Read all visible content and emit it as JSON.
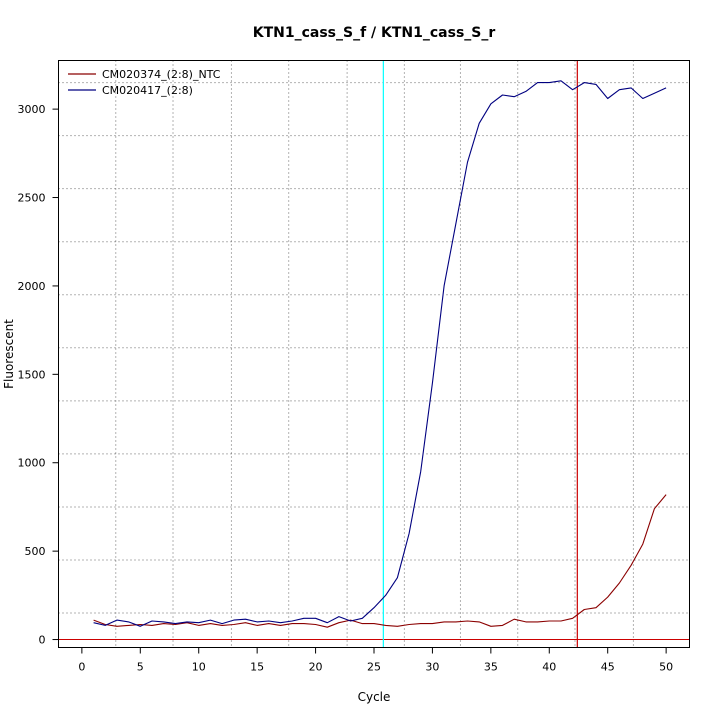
{
  "chart_data": {
    "type": "line",
    "title": "KTN1_cass_S_f / KTN1_cass_S_r",
    "xlabel": "Cycle",
    "ylabel": "Fluorescent",
    "xlim": [
      -2,
      52
    ],
    "ylim": [
      -45,
      3275
    ],
    "x_ticks": [
      0,
      5,
      10,
      15,
      20,
      25,
      30,
      35,
      40,
      45,
      50
    ],
    "y_ticks": [
      0,
      500,
      1000,
      1500,
      2000,
      2500,
      3000
    ],
    "grid": true,
    "grid_style": "dotted",
    "vertical_gridlines": [
      2.9,
      7.8,
      12.8,
      17.7,
      22.7,
      27.6,
      32.4,
      37.3,
      42.2,
      47.2
    ],
    "horizontal_gridlines": [
      150,
      450,
      750,
      1050,
      1350,
      1650,
      1950,
      2250,
      2550,
      2850,
      3150
    ],
    "legend_position": "top-left",
    "threshold_line": {
      "y": 0,
      "color": "#cc0000"
    },
    "markers": [
      {
        "x": 25.8,
        "color": "#00ffff"
      },
      {
        "x": 42.4,
        "color": "#cc0000"
      }
    ],
    "x": [
      1,
      2,
      3,
      4,
      5,
      6,
      7,
      8,
      9,
      10,
      11,
      12,
      13,
      14,
      15,
      16,
      17,
      18,
      19,
      20,
      21,
      22,
      23,
      24,
      25,
      26,
      27,
      28,
      29,
      30,
      31,
      32,
      33,
      34,
      35,
      36,
      37,
      38,
      39,
      40,
      41,
      42,
      43,
      44,
      45,
      46,
      47,
      48,
      49,
      50
    ],
    "series": [
      {
        "name": "CM020374_(2:8)_NTC",
        "color": "#8b0000",
        "values": [
          110,
          85,
          75,
          80,
          85,
          80,
          90,
          85,
          95,
          80,
          90,
          80,
          85,
          95,
          80,
          90,
          80,
          90,
          90,
          85,
          70,
          95,
          110,
          90,
          90,
          80,
          75,
          85,
          90,
          90,
          100,
          100,
          105,
          100,
          75,
          80,
          115,
          100,
          100,
          105,
          105,
          120,
          170,
          180,
          240,
          320,
          420,
          540,
          740,
          820
        ]
      },
      {
        "name": "CM020417_(2:8)",
        "color": "#000080",
        "values": [
          95,
          80,
          110,
          100,
          75,
          105,
          100,
          90,
          100,
          95,
          110,
          90,
          110,
          115,
          100,
          105,
          95,
          105,
          120,
          120,
          95,
          130,
          105,
          120,
          180,
          250,
          350,
          600,
          950,
          1450,
          2000,
          2350,
          2700,
          2920,
          3030,
          3080,
          3070,
          3100,
          3150,
          3150,
          3160,
          3110,
          3150,
          3140,
          3060,
          3110,
          3120,
          3060,
          3090,
          3120
        ]
      }
    ]
  }
}
